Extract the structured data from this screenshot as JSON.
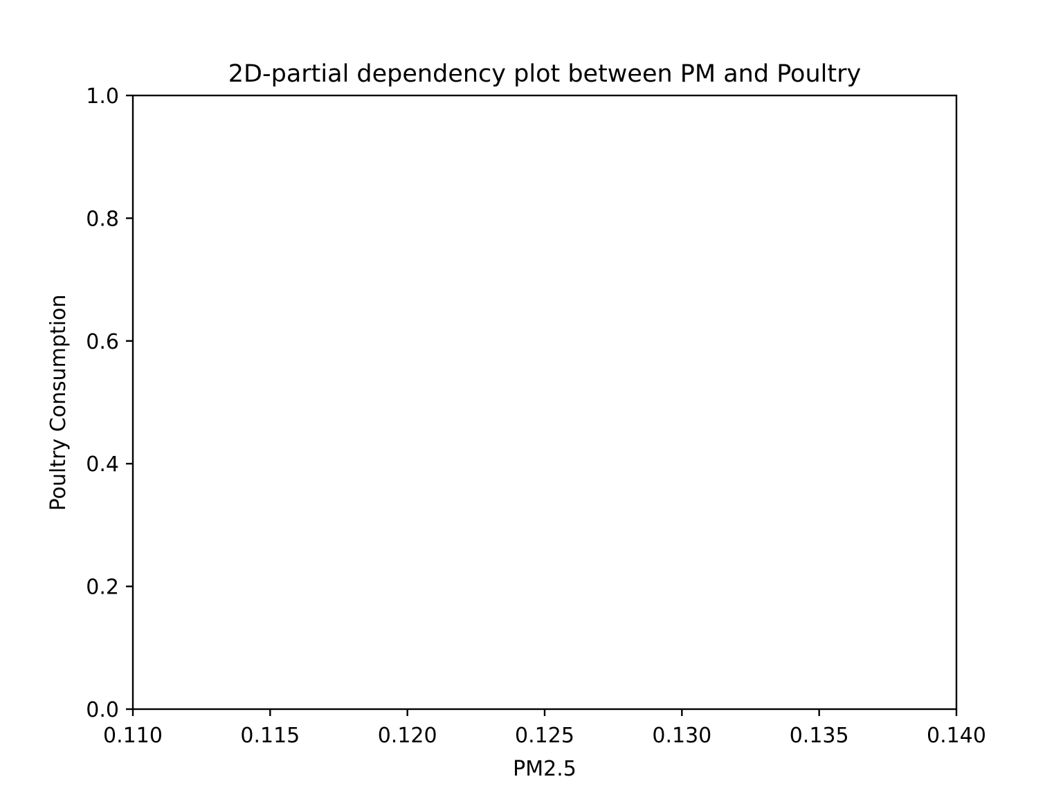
{
  "chart_data": {
    "type": "scatter",
    "title": "2D-partial dependency plot between PM and Poultry",
    "xlabel": "PM2.5",
    "ylabel": "Poultry Consumption",
    "xlim": [
      0.11,
      0.14
    ],
    "ylim": [
      0.0,
      1.0
    ],
    "x_ticks": [
      {
        "value": 0.11,
        "label": "0.110"
      },
      {
        "value": 0.115,
        "label": "0.115"
      },
      {
        "value": 0.12,
        "label": "0.120"
      },
      {
        "value": 0.125,
        "label": "0.125"
      },
      {
        "value": 0.13,
        "label": "0.130"
      },
      {
        "value": 0.135,
        "label": "0.135"
      },
      {
        "value": 0.14,
        "label": "0.140"
      }
    ],
    "y_ticks": [
      {
        "value": 0.0,
        "label": "0.0"
      },
      {
        "value": 0.2,
        "label": "0.2"
      },
      {
        "value": 0.4,
        "label": "0.4"
      },
      {
        "value": 0.6,
        "label": "0.6"
      },
      {
        "value": 0.8,
        "label": "0.8"
      },
      {
        "value": 1.0,
        "label": "1.0"
      }
    ],
    "series": [],
    "grid": false,
    "legend": "none"
  }
}
